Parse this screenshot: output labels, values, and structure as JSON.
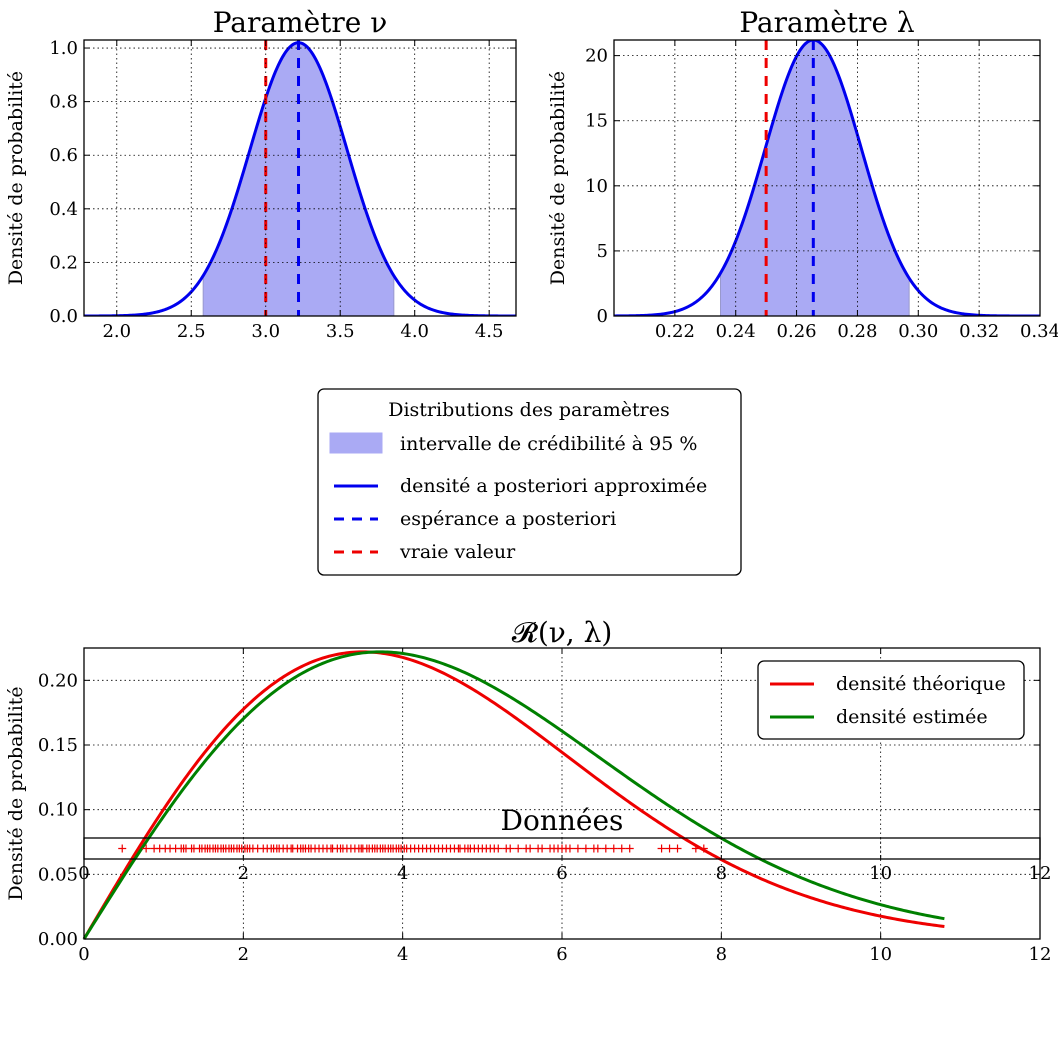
{
  "chart_data": [
    {
      "id": "nu",
      "type": "line",
      "title": "Paramètre ν",
      "ylabel": "Densité de probabilité",
      "xlim": [
        1.78,
        4.68
      ],
      "ylim": [
        0,
        1.03
      ],
      "xticks": [
        2.0,
        2.5,
        3.0,
        3.5,
        4.0,
        4.5
      ],
      "xtick_labels": [
        "2.0",
        "2.5",
        "3.0",
        "3.5",
        "4.0",
        "4.5"
      ],
      "yticks": [
        0.0,
        0.2,
        0.4,
        0.6,
        0.8,
        1.0
      ],
      "ytick_labels": [
        "0.0",
        "0.2",
        "0.4",
        "0.6",
        "0.8",
        "1.0"
      ],
      "grid": true,
      "density": {
        "mean": 3.22,
        "sd": 0.327,
        "peak": 1.02
      },
      "credible_interval": [
        2.58,
        3.86
      ],
      "posterior_mean": 3.22,
      "true_value": 3.0,
      "colors": {
        "fill": "#aaaaf4",
        "curve": "#0000ee",
        "mean": "#0000ee",
        "true": "#ee0000"
      }
    },
    {
      "id": "lambda",
      "type": "line",
      "title": "Paramètre λ",
      "ylabel": "Densité de probabilité",
      "xlim": [
        0.2,
        0.34
      ],
      "ylim": [
        0,
        21.2
      ],
      "xticks": [
        0.22,
        0.24,
        0.26,
        0.28,
        0.3,
        0.32,
        0.34
      ],
      "xtick_labels": [
        "0.22",
        "0.24",
        "0.26",
        "0.28",
        "0.30",
        "0.32",
        "0.34"
      ],
      "yticks": [
        0,
        5,
        10,
        15,
        20
      ],
      "ytick_labels": [
        "0",
        "5",
        "10",
        "15",
        "20"
      ],
      "grid": true,
      "density": {
        "mean": 0.2655,
        "sd": 0.0158,
        "peak": 21.2
      },
      "credible_interval": [
        0.235,
        0.297
      ],
      "posterior_mean": 0.2655,
      "true_value": 0.25,
      "colors": {
        "fill": "#aaaaf4",
        "curve": "#0000ee",
        "mean": "#0000ee",
        "true": "#ee0000"
      }
    },
    {
      "id": "rayleigh",
      "type": "line",
      "title": "𝓡(ν, λ)",
      "ylabel": "Densité de probabilité",
      "xlim": [
        0,
        12
      ],
      "ylim": [
        0,
        0.225
      ],
      "xticks": [
        0,
        2,
        4,
        6,
        8,
        10,
        12
      ],
      "xtick_labels": [
        "0",
        "2",
        "4",
        "6",
        "8",
        "10",
        "12"
      ],
      "yticks": [
        0.0,
        0.05,
        0.1,
        0.15,
        0.2
      ],
      "ytick_labels": [
        "0.00",
        "0.05",
        "0.10",
        "0.15",
        "0.20"
      ],
      "grid": true,
      "legend_position": "top-right",
      "series": [
        {
          "name": "densité théorique",
          "color": "#ee0000",
          "nu": 3.0,
          "lambda": 0.25,
          "xmax": 10.8
        },
        {
          "name": "densité estimée",
          "color": "#008000",
          "nu": 3.22,
          "lambda": 0.2655,
          "xmax": 10.8
        }
      ]
    },
    {
      "id": "data",
      "type": "scatter",
      "title": "Données",
      "xlim": [
        0,
        12
      ],
      "xticks": [
        0,
        2,
        4,
        6,
        8,
        10,
        12
      ],
      "xtick_labels": [
        "0",
        "2",
        "4",
        "6",
        "8",
        "10",
        "12"
      ],
      "grid": true,
      "marker": "+",
      "color": "#ee0000",
      "x": [
        0.48,
        0.78,
        0.88,
        0.95,
        1.02,
        1.08,
        1.15,
        1.22,
        1.25,
        1.28,
        1.35,
        1.38,
        1.45,
        1.48,
        1.52,
        1.55,
        1.58,
        1.62,
        1.65,
        1.68,
        1.72,
        1.75,
        1.78,
        1.82,
        1.85,
        1.88,
        1.92,
        1.95,
        1.98,
        2.02,
        2.05,
        2.08,
        2.12,
        2.18,
        2.25,
        2.3,
        2.35,
        2.38,
        2.42,
        2.45,
        2.5,
        2.55,
        2.6,
        2.62,
        2.68,
        2.72,
        2.75,
        2.78,
        2.82,
        2.85,
        2.9,
        2.95,
        3.0,
        3.05,
        3.1,
        3.12,
        3.18,
        3.22,
        3.25,
        3.3,
        3.35,
        3.4,
        3.45,
        3.48,
        3.5,
        3.55,
        3.58,
        3.62,
        3.65,
        3.68,
        3.72,
        3.75,
        3.78,
        3.82,
        3.85,
        3.88,
        3.92,
        3.95,
        3.98,
        4.02,
        4.05,
        4.1,
        4.15,
        4.2,
        4.25,
        4.3,
        4.35,
        4.4,
        4.45,
        4.5,
        4.55,
        4.6,
        4.65,
        4.7,
        4.72,
        4.78,
        4.82,
        4.85,
        4.9,
        4.95,
        5.0,
        5.05,
        5.1,
        5.15,
        5.2,
        5.3,
        5.35,
        5.45,
        5.55,
        5.6,
        5.7,
        5.75,
        5.85,
        5.9,
        5.95,
        6.0,
        6.05,
        6.1,
        6.2,
        6.3,
        6.4,
        6.45,
        6.55,
        6.65,
        6.75,
        6.85,
        7.25,
        7.35,
        7.45,
        7.68,
        7.78
      ]
    }
  ],
  "legend": {
    "title": "Distributions des paramètres",
    "items": [
      {
        "label": "intervalle de crédibilité à 95 %",
        "kind": "patch",
        "color": "#aaaaf4"
      },
      {
        "label": "densité a posteriori approximée",
        "kind": "solid",
        "color": "#0000ee"
      },
      {
        "label": "espérance a posteriori",
        "kind": "dashed",
        "color": "#0000ee"
      },
      {
        "label": "vraie valeur",
        "kind": "dashed",
        "color": "#ee0000"
      }
    ]
  }
}
